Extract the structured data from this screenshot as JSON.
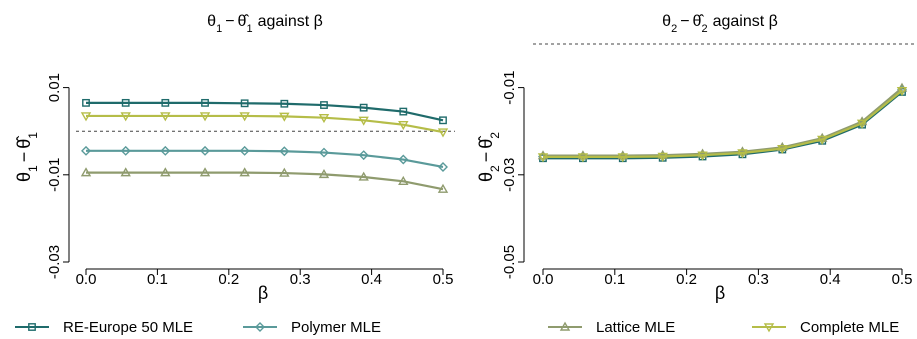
{
  "chart_data": [
    {
      "type": "line",
      "title": "θ1 − θ̂1 against β",
      "title_parts": {
        "a": "θ",
        "a_sub": "1",
        "minus": "−",
        "b": "θ̂",
        "b_sub": "1",
        "rest": "against β"
      },
      "xlabel": "β",
      "ylabel": "θ1 − θ̂1",
      "ylabel_parts": {
        "a": "θ",
        "a_sub": "1",
        "minus": "−",
        "b": "θ̂",
        "b_sub": "1"
      },
      "xlim": [
        0,
        0.5
      ],
      "ylim": [
        -0.03,
        0.02
      ],
      "x_ticks": [
        "0.0",
        "0.1",
        "0.2",
        "0.3",
        "0.4",
        "0.5"
      ],
      "y_ticks": [
        {
          "value": 0.01,
          "label": "0.01"
        },
        {
          "value": -0.01,
          "label": "-0.01"
        },
        {
          "value": -0.03,
          "label": "-0.03"
        }
      ],
      "reference_line": 0,
      "grid": false,
      "x": [
        0,
        0.0556,
        0.1111,
        0.1667,
        0.2222,
        0.2778,
        0.3333,
        0.3889,
        0.4444,
        0.5
      ],
      "series": [
        {
          "name": "RE-Europe 50 MLE",
          "color": "#1f6b6b",
          "marker": "square",
          "values": [
            0.0065,
            0.0065,
            0.0065,
            0.0065,
            0.0064,
            0.0063,
            0.006,
            0.0054,
            0.0045,
            0.0025
          ]
        },
        {
          "name": "Polymer MLE",
          "color": "#5a9a9a",
          "marker": "diamond",
          "values": [
            -0.0045,
            -0.0045,
            -0.0045,
            -0.0045,
            -0.0045,
            -0.0046,
            -0.0049,
            -0.0055,
            -0.0065,
            -0.0082
          ]
        },
        {
          "name": "Lattice MLE",
          "color": "#8f9b6e",
          "marker": "triangle-up",
          "values": [
            -0.0095,
            -0.0095,
            -0.0095,
            -0.0095,
            -0.0095,
            -0.0096,
            -0.0099,
            -0.0105,
            -0.0115,
            -0.0133
          ]
        },
        {
          "name": "Complete MLE",
          "color": "#b5bd48",
          "marker": "triangle-down",
          "values": [
            0.0035,
            0.0035,
            0.0035,
            0.0035,
            0.0035,
            0.0034,
            0.0031,
            0.0025,
            0.0015,
            -0.0002
          ]
        }
      ]
    },
    {
      "type": "line",
      "title": "θ2 − θ̂2 against β",
      "title_parts": {
        "a": "θ",
        "a_sub": "2",
        "minus": "−",
        "b": "θ̂",
        "b_sub": "2",
        "rest": "against β"
      },
      "xlabel": "β",
      "ylabel": "θ2 − θ̂2",
      "ylabel_parts": {
        "a": "θ",
        "a_sub": "2",
        "minus": "−",
        "b": "θ̂",
        "b_sub": "2"
      },
      "xlim": [
        0,
        0.5
      ],
      "ylim": [
        -0.05,
        0
      ],
      "x_ticks": [
        "0.0",
        "0.1",
        "0.2",
        "0.3",
        "0.4",
        "0.5"
      ],
      "y_ticks": [
        {
          "value": -0.01,
          "label": "-0.01"
        },
        {
          "value": -0.03,
          "label": "-0.03"
        },
        {
          "value": -0.05,
          "label": "-0.05"
        }
      ],
      "reference_line": 0,
      "grid": false,
      "x": [
        0,
        0.0556,
        0.1111,
        0.1667,
        0.2222,
        0.2778,
        0.3333,
        0.3889,
        0.4444,
        0.5
      ],
      "series": [
        {
          "name": "RE-Europe 50 MLE",
          "color": "#1f6b6b",
          "marker": "square",
          "values": [
            -0.0262,
            -0.0262,
            -0.0262,
            -0.0261,
            -0.0258,
            -0.0253,
            -0.0242,
            -0.0222,
            -0.0185,
            -0.011
          ]
        },
        {
          "name": "Polymer MLE",
          "color": "#5a9a9a",
          "marker": "diamond",
          "values": [
            -0.0258,
            -0.0258,
            -0.0258,
            -0.0257,
            -0.0254,
            -0.0249,
            -0.0239,
            -0.0218,
            -0.0181,
            -0.0105
          ]
        },
        {
          "name": "Lattice MLE",
          "color": "#8f9b6e",
          "marker": "triangle-up",
          "values": [
            -0.0256,
            -0.0256,
            -0.0256,
            -0.0255,
            -0.0252,
            -0.0247,
            -0.0237,
            -0.0216,
            -0.0178,
            -0.0101
          ]
        },
        {
          "name": "Complete MLE",
          "color": "#b5bd48",
          "marker": "triangle-down",
          "values": [
            -0.0259,
            -0.0259,
            -0.0259,
            -0.0258,
            -0.0255,
            -0.025,
            -0.024,
            -0.0219,
            -0.0182,
            -0.0107
          ]
        }
      ]
    }
  ],
  "legend": {
    "placement": "bottom",
    "items": [
      {
        "label": "RE-Europe 50 MLE",
        "color": "#1f6b6b",
        "marker": "square"
      },
      {
        "label": "Polymer MLE",
        "color": "#5a9a9a",
        "marker": "diamond"
      },
      {
        "label": "Lattice MLE",
        "color": "#8f9b6e",
        "marker": "triangle-up"
      },
      {
        "label": "Complete MLE",
        "color": "#b5bd48",
        "marker": "triangle-down"
      }
    ]
  }
}
